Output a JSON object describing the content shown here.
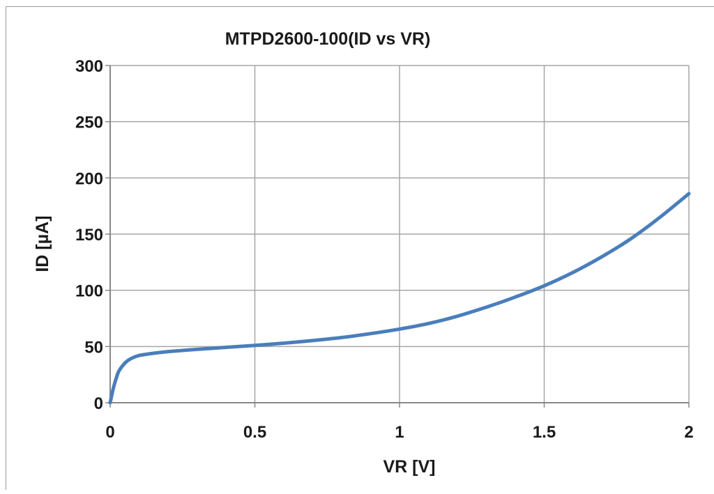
{
  "chart_data": {
    "type": "line",
    "title": "MTPD2600-100(ID vs VR)",
    "xlabel": "VR [V]",
    "ylabel": "ID  [µA]",
    "xlim": [
      0,
      2
    ],
    "ylim": [
      0,
      300
    ],
    "xticks": [
      0,
      0.5,
      1,
      1.5,
      2
    ],
    "xtick_labels": [
      "0",
      "0.5",
      "1",
      "1.5",
      "2"
    ],
    "yticks": [
      0,
      50,
      100,
      150,
      200,
      250,
      300
    ],
    "ytick_labels": [
      "0",
      "50",
      "100",
      "150",
      "200",
      "250",
      "300"
    ],
    "grid": true,
    "legend": "none",
    "series": [
      {
        "color": "#4a7ebb",
        "x": [
          0,
          0.01,
          0.02,
          0.03,
          0.05,
          0.07,
          0.1,
          0.15,
          0.2,
          0.3,
          0.4,
          0.5,
          0.6,
          0.7,
          0.8,
          0.9,
          1.0,
          1.1,
          1.2,
          1.3,
          1.4,
          1.5,
          1.6,
          1.7,
          1.8,
          1.9,
          2.0
        ],
        "y": [
          0,
          12,
          21,
          28,
          35,
          39,
          42,
          44,
          45.5,
          47.5,
          49.3,
          51,
          53,
          55.3,
          58,
          61.5,
          65.5,
          70.5,
          77,
          85,
          94,
          104,
          116,
          130,
          146,
          165,
          186
        ]
      }
    ]
  }
}
